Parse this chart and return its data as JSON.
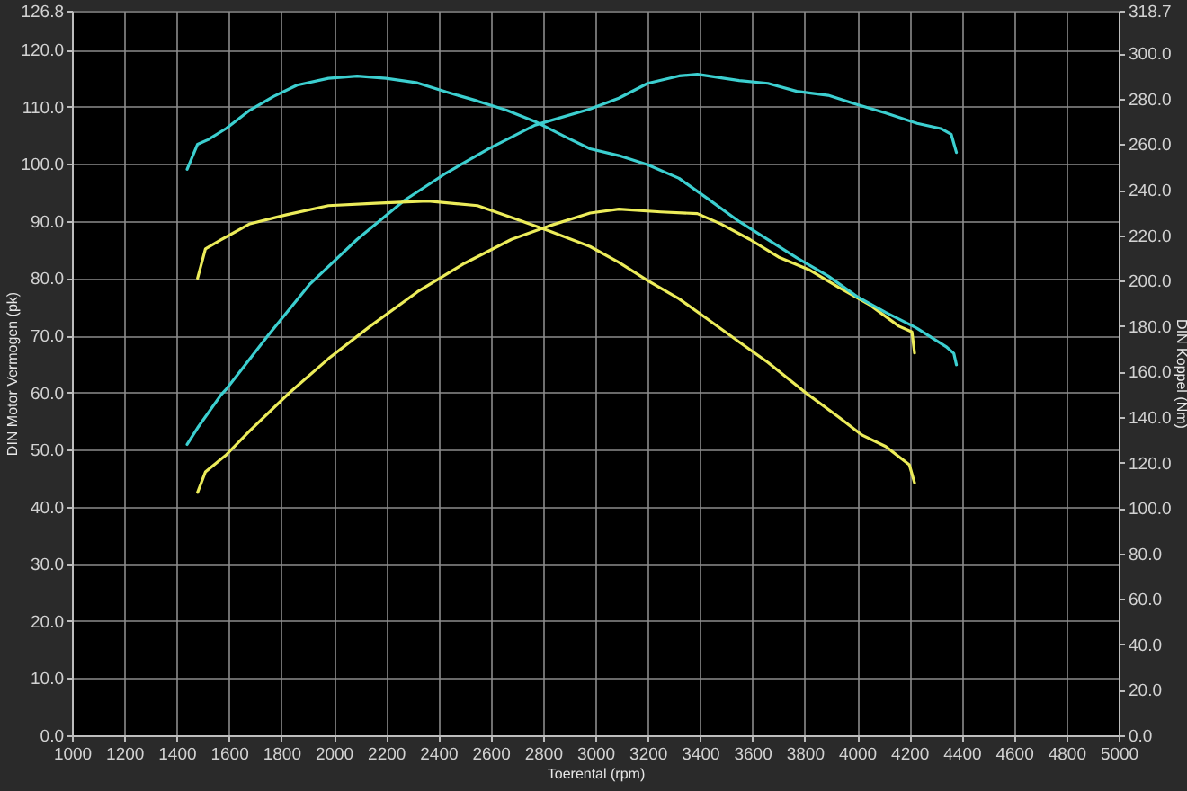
{
  "chart_data": {
    "type": "line",
    "xlabel": "Toerental (rpm)",
    "ylabel": "DIN Motor Vermogen (pk)",
    "y2label": "DIN Koppel (Nm)",
    "xlim": [
      1000,
      5000
    ],
    "xticks": [
      1000,
      1200,
      1400,
      1600,
      1800,
      2000,
      2200,
      2400,
      2600,
      2800,
      3000,
      3200,
      3400,
      3600,
      3800,
      4000,
      4200,
      4400,
      4600,
      4800,
      5000
    ],
    "ylim": [
      0,
      126.8
    ],
    "yticks": [
      {
        "value": 0,
        "label": "0.0"
      },
      {
        "value": 10,
        "label": "10.0"
      },
      {
        "value": 20,
        "label": "20.0"
      },
      {
        "value": 30,
        "label": "30.0"
      },
      {
        "value": 40,
        "label": "40.0"
      },
      {
        "value": 50,
        "label": "50.0"
      },
      {
        "value": 60,
        "label": "60.0"
      },
      {
        "value": 70,
        "label": "70.0"
      },
      {
        "value": 80,
        "label": "80.0"
      },
      {
        "value": 90,
        "label": "90.0"
      },
      {
        "value": 100,
        "label": "100.0"
      },
      {
        "value": 110,
        "label": "110.0"
      },
      {
        "value": 120,
        "label": "120.0"
      },
      126.8
    ],
    "y2lim": [
      0,
      318.7
    ],
    "y2ticks": [
      {
        "value": 0,
        "label": "0.0"
      },
      {
        "value": 20,
        "label": "20.0"
      },
      {
        "value": 40,
        "label": "40.0"
      },
      {
        "value": 60,
        "label": "60.0"
      },
      {
        "value": 80,
        "label": "80.0"
      },
      {
        "value": 100,
        "label": "100.0"
      },
      {
        "value": 120,
        "label": "120.0"
      },
      {
        "value": 140,
        "label": "140.0"
      },
      {
        "value": 160,
        "label": "160.0"
      },
      {
        "value": 180,
        "label": "180.0"
      },
      {
        "value": 200,
        "label": "200.0"
      },
      {
        "value": 220,
        "label": "220.0"
      },
      {
        "value": 240,
        "label": "240.0"
      },
      {
        "value": 260,
        "label": "260.0"
      },
      {
        "value": 280,
        "label": "280.0"
      },
      {
        "value": 300,
        "label": "300.0"
      },
      318.7
    ],
    "grid": true,
    "series": [
      {
        "color": "#3ccfd0",
        "x": [
          1440,
          1480,
          1570,
          1590,
          1750,
          1910,
          2090,
          2270,
          2430,
          2590,
          2770,
          2980,
          3090,
          3200,
          3320,
          3390,
          3550,
          3660,
          3770,
          3890,
          4000,
          4110,
          4230,
          4320,
          4360,
          4380
        ],
        "values": [
          50.9,
          53.8,
          59.6,
          60.6,
          70.0,
          79.0,
          86.8,
          93.6,
          98.4,
          102.6,
          106.8,
          109.6,
          111.5,
          114.1,
          115.4,
          115.7,
          114.6,
          114.1,
          112.7,
          112.0,
          110.4,
          108.9,
          107.1,
          106.2,
          105.2,
          102.0
        ]
      },
      {
        "color": "#3ccfd0",
        "axis": "y2",
        "x": [
          1440,
          1480,
          1520,
          1590,
          1680,
          1770,
          1860,
          1980,
          2090,
          2200,
          2320,
          2430,
          2550,
          2660,
          2770,
          2890,
          2980,
          3090,
          3200,
          3320,
          3430,
          3550,
          3660,
          3770,
          3890,
          4000,
          4110,
          4230,
          4340,
          4370,
          4380
        ],
        "values": [
          249,
          260,
          262,
          267,
          275,
          281,
          286,
          289,
          290,
          289,
          287,
          283,
          279,
          275,
          270,
          263,
          258,
          255,
          251,
          245,
          236,
          226,
          218,
          210,
          202,
          193,
          186,
          179,
          171,
          168,
          163
        ]
      },
      {
        "color": "#ecec5a",
        "x": [
          1480,
          1510,
          1590,
          1680,
          1830,
          1980,
          2140,
          2320,
          2500,
          2680,
          2820,
          2980,
          3090,
          3250,
          3390,
          3480,
          3590,
          3700,
          3820,
          3930,
          4050,
          4160,
          4210,
          4220
        ],
        "values": [
          42.5,
          46.1,
          49.1,
          53.3,
          59.9,
          65.9,
          71.6,
          77.6,
          82.6,
          86.8,
          89.1,
          91.4,
          92.1,
          91.6,
          91.3,
          89.5,
          86.8,
          83.7,
          81.4,
          78.4,
          75.3,
          71.6,
          70.6,
          66.9
        ]
      },
      {
        "color": "#ecec5a",
        "axis": "y2",
        "x": [
          1480,
          1510,
          1570,
          1680,
          1820,
          1980,
          2160,
          2360,
          2550,
          2700,
          2820,
          2980,
          3090,
          3200,
          3320,
          3430,
          3550,
          3660,
          3800,
          3930,
          4020,
          4110,
          4200,
          4220
        ],
        "values": [
          201,
          214,
          218,
          225,
          229,
          233,
          234,
          235,
          233,
          227,
          222,
          215,
          208,
          200,
          192,
          183,
          173,
          164,
          151,
          140,
          132,
          127,
          119,
          111
        ]
      }
    ]
  }
}
